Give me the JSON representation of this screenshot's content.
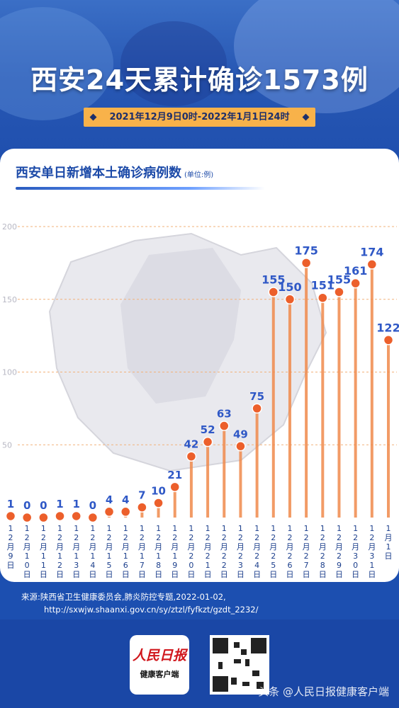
{
  "header": {
    "title": "西安24天累计确诊1573例",
    "date_range": "2021年12月9日0时-2022年1月1日24时"
  },
  "chart_data": {
    "type": "line",
    "title": "西安单日新增本土确诊病例数",
    "unit": "(单位:例)",
    "ylim": [
      0,
      200
    ],
    "yticks": [
      50,
      100,
      150,
      200
    ],
    "grid": true,
    "categories": [
      "12月9日",
      "12月10日",
      "12月11日",
      "12月12日",
      "12月13日",
      "12月14日",
      "12月15日",
      "12月16日",
      "12月17日",
      "12月18日",
      "12月19日",
      "12月20日",
      "12月21日",
      "12月22日",
      "12月23日",
      "12月24日",
      "12月25日",
      "12月26日",
      "12月27日",
      "12月28日",
      "12月29日",
      "12月30日",
      "12月31日",
      "1月1日"
    ],
    "values": [
      1,
      0,
      0,
      1,
      1,
      0,
      4,
      4,
      7,
      10,
      21,
      42,
      52,
      63,
      49,
      75,
      155,
      150,
      175,
      151,
      155,
      161,
      174,
      122
    ],
    "colors": {
      "accent": "#f08a4b",
      "label": "#2f58c6",
      "grid": "#f2b17a"
    }
  },
  "source": {
    "line1": "来源:陕西省卫生健康委员会,肺炎防控专题,2022-01-02,",
    "line2": "http://sxwjw.shaanxi.gov.cn/sy/ztzl/fyfkzt/gzdt_2232/"
  },
  "footer": {
    "logo_main": "人民日报",
    "logo_sub": "健康客户端",
    "watermark": "头条 @人民日报健康客户端"
  }
}
